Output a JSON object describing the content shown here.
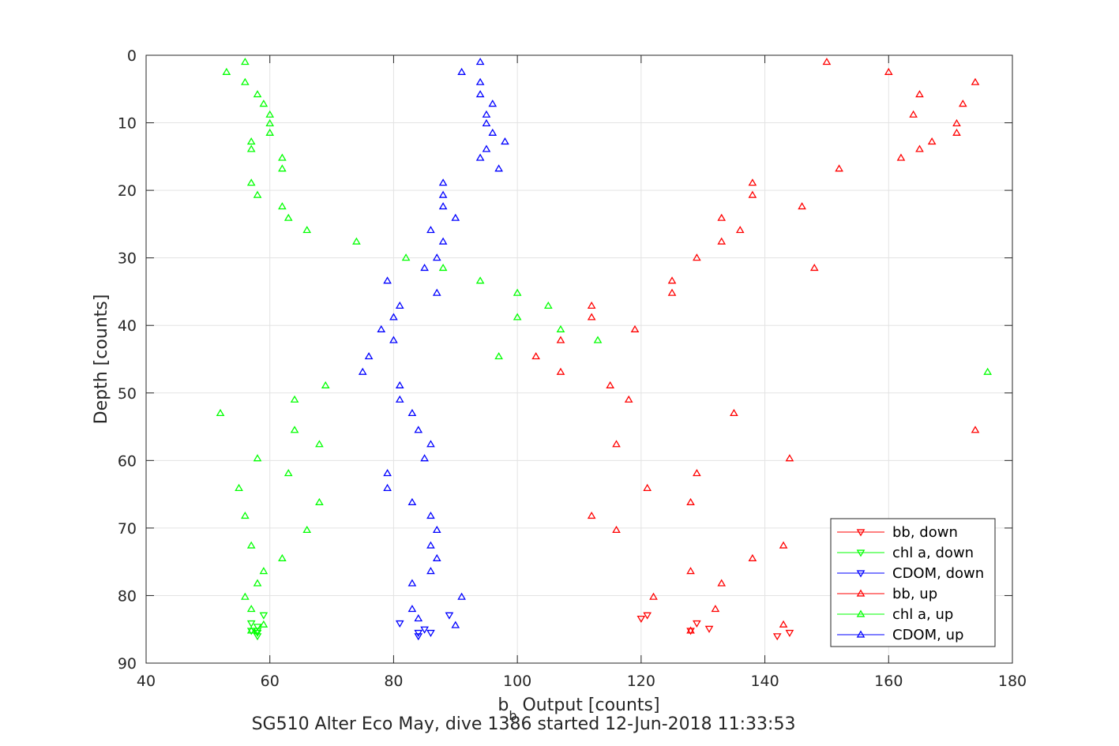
{
  "chart_data": {
    "type": "scatter",
    "title": "",
    "xlabel_main": "b",
    "xlabel_sub": "b",
    "xlabel_rest": " Output [counts]",
    "ylabel": "Depth [counts]",
    "caption": "SG510 Alter Eco May, dive 1386 started 12-Jun-2018 11:33:53",
    "xlim": [
      40,
      180
    ],
    "ylim": [
      0,
      90
    ],
    "y_reversed": true,
    "xticks": [
      40,
      60,
      80,
      100,
      120,
      140,
      160,
      180
    ],
    "yticks": [
      0,
      10,
      20,
      30,
      40,
      50,
      60,
      70,
      80,
      90
    ],
    "xtick_labels": [
      "40",
      "60",
      "80",
      "100",
      "120",
      "140",
      "160",
      "180"
    ],
    "ytick_labels": [
      "0",
      "10",
      "20",
      "30",
      "40",
      "50",
      "60",
      "70",
      "80",
      "90"
    ],
    "grid": true,
    "legend_position": "bottom-right",
    "series": [
      {
        "name": "bb, down",
        "color": "#ff0000",
        "marker": "triangle-down",
        "points": [
          [
            121,
            82.9
          ],
          [
            120,
            83.4
          ],
          [
            129,
            84.1
          ],
          [
            131,
            84.9
          ],
          [
            128,
            85.2
          ],
          [
            142,
            86.0
          ],
          [
            144,
            85.5
          ]
        ]
      },
      {
        "name": "chl a, down",
        "color": "#00ff00",
        "marker": "triangle-down",
        "points": [
          [
            59,
            82.9
          ],
          [
            57,
            84.1
          ],
          [
            58,
            84.6
          ],
          [
            58,
            85.2
          ],
          [
            58,
            85.5
          ],
          [
            58,
            86.0
          ],
          [
            57,
            85.2
          ]
        ]
      },
      {
        "name": "CDOM, down",
        "color": "#0000ff",
        "marker": "triangle-down",
        "points": [
          [
            89,
            82.9
          ],
          [
            81,
            84.1
          ],
          [
            85,
            85.0
          ],
          [
            84,
            85.5
          ],
          [
            86,
            85.5
          ],
          [
            84,
            86.0
          ]
        ]
      },
      {
        "name": "bb, up",
        "color": "#ff0000",
        "marker": "triangle-up",
        "points": [
          [
            150,
            1
          ],
          [
            160,
            2.5
          ],
          [
            174,
            4
          ],
          [
            165,
            5.8
          ],
          [
            172,
            7.2
          ],
          [
            164,
            8.8
          ],
          [
            171,
            10.1
          ],
          [
            171,
            11.5
          ],
          [
            167,
            12.8
          ],
          [
            165,
            13.9
          ],
          [
            162,
            15.2
          ],
          [
            152,
            16.8
          ],
          [
            138,
            18.9
          ],
          [
            138,
            20.7
          ],
          [
            146,
            22.4
          ],
          [
            133,
            24.1
          ],
          [
            136,
            25.9
          ],
          [
            133,
            27.6
          ],
          [
            129,
            30
          ],
          [
            148,
            31.5
          ],
          [
            125,
            33.4
          ],
          [
            125,
            35.2
          ],
          [
            112,
            37.1
          ],
          [
            112,
            38.8
          ],
          [
            119,
            40.6
          ],
          [
            107,
            42.2
          ],
          [
            103,
            44.6
          ],
          [
            107,
            46.9
          ],
          [
            115,
            48.9
          ],
          [
            118,
            51
          ],
          [
            135,
            53
          ],
          [
            174,
            55.5
          ],
          [
            116,
            57.6
          ],
          [
            144,
            59.7
          ],
          [
            129,
            61.9
          ],
          [
            121,
            64.1
          ],
          [
            128,
            66.2
          ],
          [
            112,
            68.2
          ],
          [
            116,
            70.3
          ],
          [
            143,
            72.6
          ],
          [
            138,
            74.5
          ],
          [
            128,
            76.4
          ],
          [
            133,
            78.2
          ],
          [
            122,
            80.2
          ],
          [
            132,
            82.0
          ],
          [
            143,
            84.3
          ],
          [
            128,
            85.2
          ]
        ]
      },
      {
        "name": "chl a, up",
        "color": "#00ff00",
        "marker": "triangle-up",
        "points": [
          [
            56,
            1
          ],
          [
            53,
            2.5
          ],
          [
            56,
            4
          ],
          [
            58,
            5.8
          ],
          [
            59,
            7.2
          ],
          [
            60,
            8.8
          ],
          [
            60,
            10.1
          ],
          [
            60,
            11.5
          ],
          [
            57,
            12.8
          ],
          [
            57,
            13.9
          ],
          [
            62,
            15.2
          ],
          [
            62,
            16.8
          ],
          [
            57,
            18.9
          ],
          [
            58,
            20.7
          ],
          [
            62,
            22.4
          ],
          [
            63,
            24.1
          ],
          [
            66,
            25.9
          ],
          [
            74,
            27.6
          ],
          [
            82,
            30
          ],
          [
            88,
            31.5
          ],
          [
            94,
            33.4
          ],
          [
            100,
            35.2
          ],
          [
            105,
            37.1
          ],
          [
            100,
            38.8
          ],
          [
            107,
            40.6
          ],
          [
            113,
            42.2
          ],
          [
            97,
            44.6
          ],
          [
            176,
            46.9
          ],
          [
            69,
            48.9
          ],
          [
            64,
            51
          ],
          [
            52,
            53
          ],
          [
            64,
            55.5
          ],
          [
            68,
            57.6
          ],
          [
            58,
            59.7
          ],
          [
            63,
            61.9
          ],
          [
            55,
            64.1
          ],
          [
            68,
            66.2
          ],
          [
            56,
            68.2
          ],
          [
            66,
            70.3
          ],
          [
            57,
            72.6
          ],
          [
            62,
            74.5
          ],
          [
            59,
            76.4
          ],
          [
            58,
            78.2
          ],
          [
            56,
            80.2
          ],
          [
            57,
            82.0
          ],
          [
            59,
            84.3
          ],
          [
            57,
            85.2
          ]
        ]
      },
      {
        "name": "CDOM, up",
        "color": "#0000ff",
        "marker": "triangle-up",
        "points": [
          [
            94,
            1
          ],
          [
            91,
            2.5
          ],
          [
            94,
            4
          ],
          [
            94,
            5.8
          ],
          [
            96,
            7.2
          ],
          [
            95,
            8.8
          ],
          [
            95,
            10.1
          ],
          [
            96,
            11.5
          ],
          [
            98,
            12.8
          ],
          [
            95,
            13.9
          ],
          [
            94,
            15.2
          ],
          [
            97,
            16.8
          ],
          [
            88,
            18.9
          ],
          [
            88,
            20.7
          ],
          [
            88,
            22.4
          ],
          [
            90,
            24.1
          ],
          [
            86,
            25.9
          ],
          [
            88,
            27.6
          ],
          [
            87,
            30
          ],
          [
            85,
            31.5
          ],
          [
            79,
            33.4
          ],
          [
            87,
            35.2
          ],
          [
            81,
            37.1
          ],
          [
            80,
            38.8
          ],
          [
            78,
            40.6
          ],
          [
            80,
            42.2
          ],
          [
            76,
            44.6
          ],
          [
            75,
            46.9
          ],
          [
            81,
            48.9
          ],
          [
            81,
            51
          ],
          [
            83,
            53
          ],
          [
            84,
            55.5
          ],
          [
            86,
            57.6
          ],
          [
            85,
            59.7
          ],
          [
            79,
            61.9
          ],
          [
            79,
            64.1
          ],
          [
            83,
            66.2
          ],
          [
            86,
            68.2
          ],
          [
            87,
            70.3
          ],
          [
            86,
            72.6
          ],
          [
            87,
            74.5
          ],
          [
            86,
            76.4
          ],
          [
            83,
            78.2
          ],
          [
            91,
            80.2
          ],
          [
            83,
            82.0
          ],
          [
            84,
            83.4
          ],
          [
            90,
            84.4
          ]
        ]
      }
    ]
  }
}
